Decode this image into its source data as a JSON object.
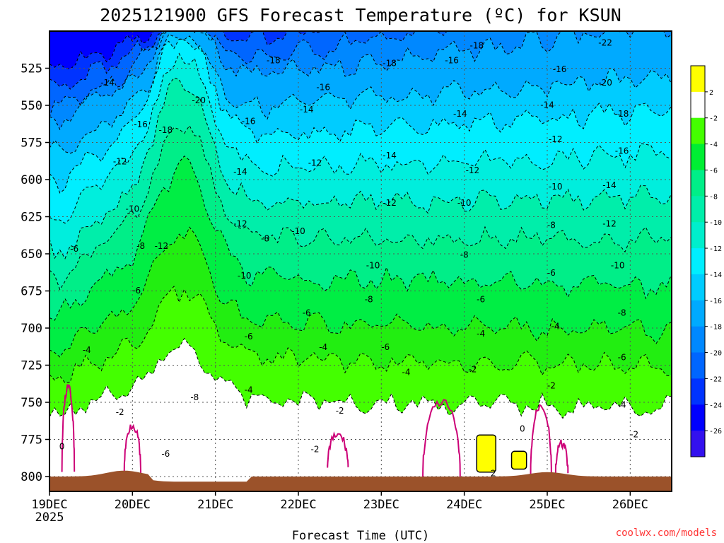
{
  "chart_data": {
    "type": "contour",
    "title": "2025121900 GFS Forecast Temperature (ºC) for KSUN",
    "xlabel": "Forecast Time (UTC)",
    "ylabel": "",
    "credit": "coolwx.com/models",
    "x_start_label_year": "2025",
    "x_ticks": [
      "19DEC",
      "20DEC",
      "21DEC",
      "22DEC",
      "23DEC",
      "24DEC",
      "25DEC",
      "26DEC"
    ],
    "xlim_days": [
      0,
      7.5
    ],
    "y_ticks": [
      525,
      550,
      575,
      600,
      625,
      650,
      675,
      700,
      725,
      750,
      775,
      800
    ],
    "ylim_hpa": [
      500,
      810
    ],
    "colorbar": {
      "levels": [
        2,
        -2,
        -4,
        -6,
        -8,
        -10,
        -12,
        -14,
        -16,
        -18,
        -20,
        -22,
        -24,
        -26
      ],
      "colors": [
        "#ffff00",
        "#ffffff",
        "#44ff00",
        "#00ee33",
        "#00ee88",
        "#00eeaa",
        "#00eecc",
        "#00eeff",
        "#00ccff",
        "#00aaff",
        "#0088ff",
        "#0066ff",
        "#0033ff",
        "#0000ff",
        "#3311ee"
      ]
    },
    "surface": {
      "name": "ground",
      "color": "#9b522a"
    },
    "band_colors": {
      "warm_yellow": "#ffff00",
      "zero_to_m2": "#ffffff",
      "m2_m4": "#44ff00",
      "m4_m6": "#22ee11",
      "m6_m8": "#00ee44",
      "m8_m10": "#00ee88",
      "m10_m12": "#00eeaa",
      "m12_m14": "#00eedd",
      "m14_m16": "#00eeff",
      "m16_m18": "#00ccff",
      "m18_m20": "#00aaff",
      "m20_m22": "#0088ff",
      "m22_m24": "#0066ff",
      "m24_m26": "#0033ff",
      "m26_below": "#0000ff"
    },
    "contour_labels": [
      {
        "text": "-14",
        "day": 0.7,
        "p": 535
      },
      {
        "text": "-16",
        "day": 1.1,
        "p": 563
      },
      {
        "text": "-18",
        "day": 1.4,
        "p": 567
      },
      {
        "text": "-20",
        "day": 1.8,
        "p": 547
      },
      {
        "text": "-12",
        "day": 0.85,
        "p": 588
      },
      {
        "text": "-10",
        "day": 1.0,
        "p": 620
      },
      {
        "text": "-8",
        "day": 1.1,
        "p": 645
      },
      {
        "text": "-12",
        "day": 1.35,
        "p": 645
      },
      {
        "text": "-6",
        "day": 0.3,
        "p": 647
      },
      {
        "text": "-6",
        "day": 1.05,
        "p": 675
      },
      {
        "text": "-4",
        "day": 0.45,
        "p": 715
      },
      {
        "text": "-2",
        "day": 0.85,
        "p": 757
      },
      {
        "text": "0",
        "day": 0.15,
        "p": 780
      },
      {
        "text": "-6",
        "day": 1.4,
        "p": 785
      },
      {
        "text": "-8",
        "day": 1.75,
        "p": 747
      },
      {
        "text": "-14",
        "day": 2.3,
        "p": 595
      },
      {
        "text": "-16",
        "day": 2.4,
        "p": 561
      },
      {
        "text": "-18",
        "day": 2.7,
        "p": 520
      },
      {
        "text": "-16",
        "day": 3.3,
        "p": 538
      },
      {
        "text": "-14",
        "day": 3.1,
        "p": 553
      },
      {
        "text": "-12",
        "day": 3.2,
        "p": 589
      },
      {
        "text": "-12",
        "day": 2.3,
        "p": 630
      },
      {
        "text": "-10",
        "day": 2.35,
        "p": 665
      },
      {
        "text": "-8",
        "day": 2.6,
        "p": 640
      },
      {
        "text": "-10",
        "day": 3.0,
        "p": 635
      },
      {
        "text": "-6",
        "day": 2.4,
        "p": 706
      },
      {
        "text": "-4",
        "day": 2.4,
        "p": 742
      },
      {
        "text": "-6",
        "day": 3.1,
        "p": 690
      },
      {
        "text": "-4",
        "day": 3.3,
        "p": 713
      },
      {
        "text": "-2",
        "day": 3.2,
        "p": 782
      },
      {
        "text": "-18",
        "day": 4.1,
        "p": 522
      },
      {
        "text": "-14",
        "day": 4.1,
        "p": 584
      },
      {
        "text": "-12",
        "day": 4.1,
        "p": 616
      },
      {
        "text": "-10",
        "day": 3.9,
        "p": 658
      },
      {
        "text": "-8",
        "day": 3.85,
        "p": 681
      },
      {
        "text": "-6",
        "day": 4.05,
        "p": 713
      },
      {
        "text": "-4",
        "day": 4.3,
        "p": 730
      },
      {
        "text": "-2",
        "day": 3.5,
        "p": 756
      },
      {
        "text": "-16",
        "day": 4.85,
        "p": 520
      },
      {
        "text": "-14",
        "day": 4.95,
        "p": 556
      },
      {
        "text": "-12",
        "day": 5.1,
        "p": 594
      },
      {
        "text": "-10",
        "day": 5.0,
        "p": 616
      },
      {
        "text": "-8",
        "day": 5.0,
        "p": 651
      },
      {
        "text": "-6",
        "day": 5.2,
        "p": 681
      },
      {
        "text": "-4",
        "day": 5.2,
        "p": 704
      },
      {
        "text": "-2",
        "day": 5.1,
        "p": 728
      },
      {
        "text": "0",
        "day": 5.7,
        "p": 768
      },
      {
        "text": "2",
        "day": 5.35,
        "p": 798
      },
      {
        "text": "-18",
        "day": 5.15,
        "p": 510
      },
      {
        "text": "-16",
        "day": 6.15,
        "p": 526
      },
      {
        "text": "-14",
        "day": 6.0,
        "p": 550
      },
      {
        "text": "-12",
        "day": 6.1,
        "p": 573
      },
      {
        "text": "-10",
        "day": 6.1,
        "p": 605
      },
      {
        "text": "-8",
        "day": 6.05,
        "p": 631
      },
      {
        "text": "-6",
        "day": 6.05,
        "p": 663
      },
      {
        "text": "-4",
        "day": 6.1,
        "p": 699
      },
      {
        "text": "-2",
        "day": 6.05,
        "p": 739
      },
      {
        "text": "-22",
        "day": 6.7,
        "p": 508
      },
      {
        "text": "-20",
        "day": 6.7,
        "p": 535
      },
      {
        "text": "-18",
        "day": 6.9,
        "p": 556
      },
      {
        "text": "-16",
        "day": 6.9,
        "p": 581
      },
      {
        "text": "-14",
        "day": 6.75,
        "p": 604
      },
      {
        "text": "-12",
        "day": 6.75,
        "p": 630
      },
      {
        "text": "-10",
        "day": 6.85,
        "p": 658
      },
      {
        "text": "-8",
        "day": 6.9,
        "p": 690
      },
      {
        "text": "-6",
        "day": 6.9,
        "p": 720
      },
      {
        "text": "-4",
        "day": 6.9,
        "p": 752
      },
      {
        "text": "-2",
        "day": 7.05,
        "p": 772
      }
    ],
    "freezing_regions": [
      {
        "name": "zero-isotherm",
        "count": 6,
        "color": "#cc0077"
      }
    ],
    "warm_regions": [
      {
        "name": "above-2C",
        "count": 2,
        "color": "#ffff00"
      }
    ]
  }
}
